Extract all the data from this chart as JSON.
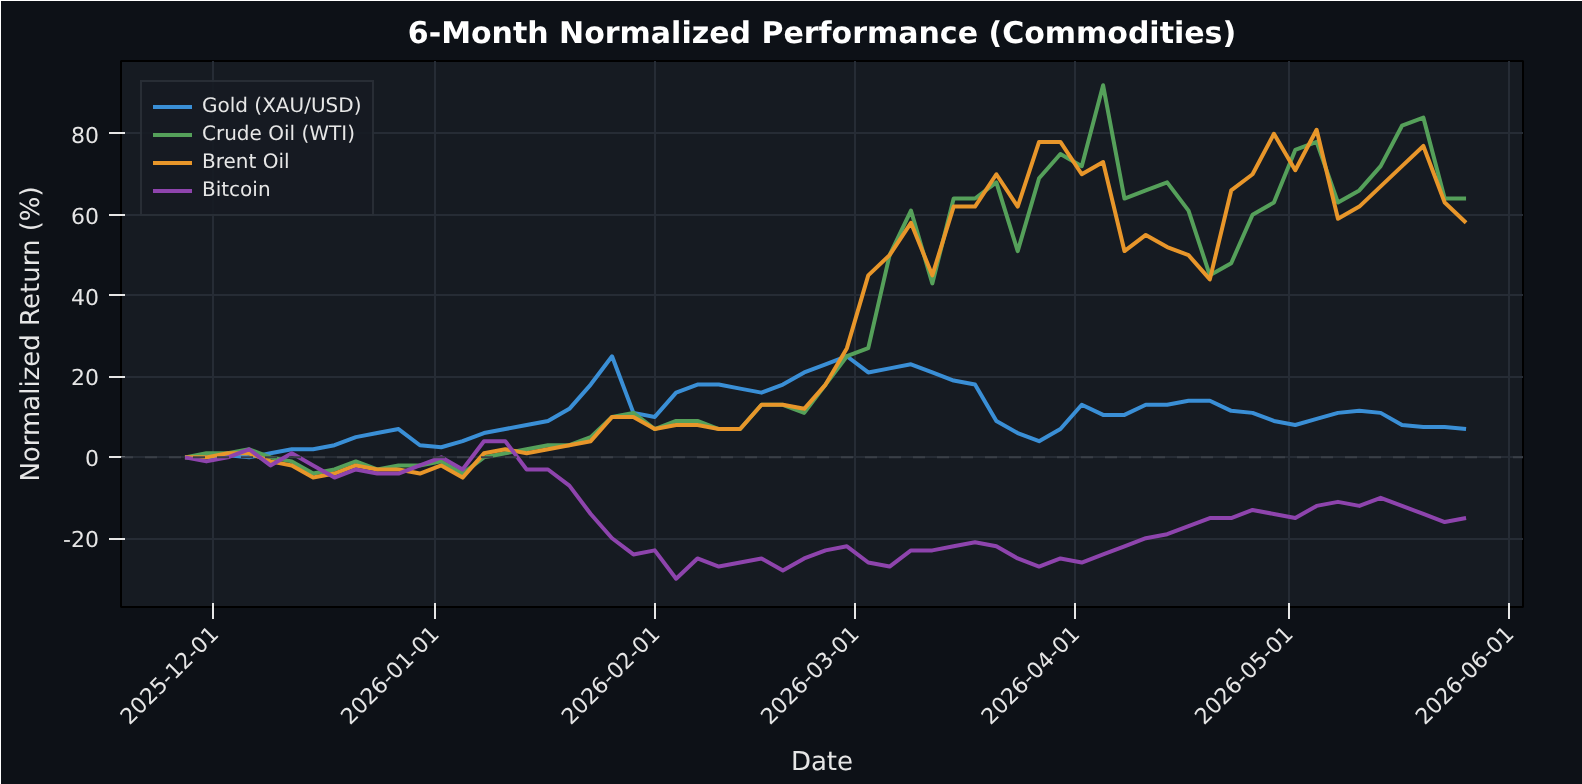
{
  "chart_data": {
    "type": "line",
    "title": "6-Month Normalized Performance (Commodities)",
    "xlabel": "Date",
    "ylabel": "Normalized Return (%)",
    "x": [
      "2025-11-27",
      "2025-11-30",
      "2025-12-03",
      "2025-12-06",
      "2025-12-09",
      "2025-12-12",
      "2025-12-15",
      "2025-12-18",
      "2025-12-21",
      "2025-12-24",
      "2025-12-27",
      "2025-12-30",
      "2026-01-02",
      "2026-01-05",
      "2026-01-08",
      "2026-01-11",
      "2026-01-14",
      "2026-01-17",
      "2026-01-20",
      "2026-01-23",
      "2026-01-26",
      "2026-01-29",
      "2026-02-01",
      "2026-02-04",
      "2026-02-07",
      "2026-02-10",
      "2026-02-13",
      "2026-02-16",
      "2026-02-19",
      "2026-02-22",
      "2026-02-25",
      "2026-02-28",
      "2026-03-03",
      "2026-03-06",
      "2026-03-09",
      "2026-03-12",
      "2026-03-15",
      "2026-03-18",
      "2026-03-21",
      "2026-03-24",
      "2026-03-27",
      "2026-03-30",
      "2026-04-02",
      "2026-04-05",
      "2026-04-08",
      "2026-04-11",
      "2026-04-14",
      "2026-04-17",
      "2026-04-20",
      "2026-04-23",
      "2026-04-26",
      "2026-04-29",
      "2026-05-02",
      "2026-05-05",
      "2026-05-08",
      "2026-05-11",
      "2026-05-14",
      "2026-05-17",
      "2026-05-20",
      "2026-05-23",
      "2026-05-26"
    ],
    "series": [
      {
        "name": "Gold (XAU/USD)",
        "color": "#3a8fd6",
        "values": [
          0,
          0,
          0.5,
          0,
          1,
          2,
          2,
          3,
          5,
          6,
          7,
          3,
          2.5,
          4,
          6,
          7,
          8,
          9,
          12,
          18,
          25,
          11,
          10,
          16,
          18,
          18,
          17,
          16,
          18,
          21,
          23,
          25,
          21,
          22,
          23,
          21,
          19,
          18,
          9,
          6,
          4,
          7,
          13,
          10.5,
          10.5,
          13,
          13,
          14,
          14,
          11.5,
          11,
          9,
          8,
          9.5,
          11,
          11.5,
          11,
          8,
          7.5,
          7.5,
          7
        ]
      },
      {
        "name": "Crude Oil (WTI)",
        "color": "#55a05a",
        "values": [
          0,
          1,
          1,
          2,
          0,
          -1,
          -4,
          -3,
          -1,
          -3,
          -2,
          -2,
          -1,
          -4,
          0,
          1,
          2,
          3,
          3,
          5,
          10,
          11,
          7,
          9,
          9,
          7,
          7,
          13,
          13,
          11,
          18,
          25,
          27,
          50,
          61,
          43,
          64,
          64,
          68,
          51,
          69,
          75,
          72,
          92,
          64,
          66,
          68,
          61,
          45,
          48,
          60,
          63,
          76,
          78,
          63,
          66,
          72,
          82,
          84,
          64,
          64
        ]
      },
      {
        "name": "Brent Oil",
        "color": "#e8962a",
        "values": [
          0,
          0,
          1,
          1,
          -1,
          -2,
          -5,
          -4,
          -2,
          -3,
          -3,
          -4,
          -2,
          -5,
          1,
          2,
          1,
          2,
          3,
          4,
          10,
          10,
          7,
          8,
          8,
          7,
          7,
          13,
          13,
          12,
          18,
          27,
          45,
          50,
          58,
          45,
          62,
          62,
          70,
          62,
          78,
          78,
          70,
          73,
          51,
          55,
          52,
          50,
          44,
          66,
          70,
          80,
          71,
          81,
          59,
          62,
          67,
          72,
          77,
          63,
          58
        ]
      },
      {
        "name": "Bitcoin",
        "color": "#8e44ad",
        "values": [
          0,
          -1,
          0,
          2,
          -2,
          1,
          -2,
          -5,
          -3,
          -4,
          -4,
          -2,
          0,
          -3,
          4,
          4,
          -3,
          -3,
          -7,
          -14,
          -20,
          -24,
          -23,
          -30,
          -25,
          -27,
          -26,
          -25,
          -28,
          -25,
          -23,
          -22,
          -26,
          -27,
          -23,
          -23,
          -22,
          -21,
          -22,
          -25,
          -27,
          -25,
          -26,
          -24,
          -22,
          -20,
          -19,
          -17,
          -15,
          -15,
          -13,
          -14,
          -15,
          -12,
          -11,
          -12,
          -10,
          -12,
          -14,
          -16,
          -15
        ]
      }
    ],
    "xlim": [
      "2025-11-18",
      "2026-06-03"
    ],
    "xticks": [
      "2025-12-01",
      "2026-01-01",
      "2026-02-01",
      "2026-03-01",
      "2026-04-01",
      "2026-05-01",
      "2026-06-01"
    ],
    "ylim": [
      -37,
      98
    ],
    "yticks": [
      -20,
      0,
      20,
      40,
      60,
      80
    ],
    "ref_lines": [
      {
        "axis": "y",
        "value": 0,
        "line_style": "dashed",
        "color": "#3a3f47"
      }
    ],
    "grid": true,
    "legend": "top left",
    "line_style": "solid",
    "marker": "none"
  }
}
